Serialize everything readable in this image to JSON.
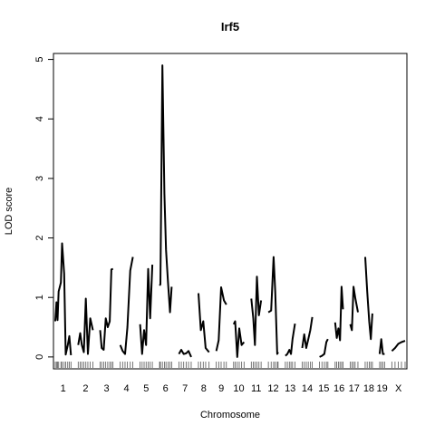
{
  "chart_data": {
    "type": "line",
    "title": "Irf5",
    "xlabel": "Chromosome",
    "ylabel": "LOD score",
    "ylim": [
      -0.2,
      5.1
    ],
    "yticks": [
      0,
      1,
      2,
      3,
      4,
      5
    ],
    "grid": false,
    "legend": "none",
    "line_color": "#000000",
    "chromosomes": [
      {
        "name": "1",
        "length": 195,
        "positions": [
          0,
          15,
          28,
          42,
          70,
          85,
          110,
          130,
          155,
          175,
          195
        ],
        "lod": [
          0.6,
          0.92,
          0.62,
          1.1,
          1.25,
          1.91,
          1.4,
          0.04,
          0.2,
          0.35,
          0.03
        ]
      },
      {
        "name": "2",
        "length": 182,
        "positions": [
          0,
          25,
          45,
          70,
          95,
          120,
          150,
          182
        ],
        "lod": [
          0.2,
          0.4,
          0.2,
          0.08,
          0.98,
          0.05,
          0.65,
          0.45
        ]
      },
      {
        "name": "3",
        "length": 160,
        "positions": [
          0,
          20,
          45,
          70,
          95,
          120,
          140,
          160
        ],
        "lod": [
          0.45,
          0.15,
          0.12,
          0.65,
          0.5,
          0.6,
          1.47,
          1.48
        ]
      },
      {
        "name": "4",
        "length": 157,
        "positions": [
          0,
          30,
          60,
          90,
          125,
          157
        ],
        "lod": [
          0.2,
          0.1,
          0.05,
          0.5,
          1.45,
          1.68
        ]
      },
      {
        "name": "5",
        "length": 152,
        "positions": [
          0,
          25,
          50,
          75,
          100,
          125,
          152
        ],
        "lod": [
          0.55,
          0.05,
          0.45,
          0.2,
          1.48,
          0.65,
          1.55
        ]
      },
      {
        "name": "6",
        "length": 150,
        "positions": [
          0,
          10,
          35,
          60,
          80,
          105,
          130,
          150
        ],
        "lod": [
          1.2,
          1.22,
          4.9,
          2.75,
          1.8,
          1.25,
          0.75,
          1.18
        ]
      },
      {
        "name": "7",
        "length": 153,
        "positions": [
          0,
          30,
          60,
          90,
          120,
          153
        ],
        "lod": [
          0.05,
          0.12,
          0.05,
          0.06,
          0.1,
          0.0
        ]
      },
      {
        "name": "8",
        "length": 132,
        "positions": [
          0,
          30,
          60,
          90,
          132
        ],
        "lod": [
          1.07,
          0.45,
          0.6,
          0.15,
          0.08
        ]
      },
      {
        "name": "9",
        "length": 125,
        "positions": [
          0,
          30,
          60,
          95,
          125
        ],
        "lod": [
          0.1,
          0.28,
          1.17,
          0.95,
          0.88
        ]
      },
      {
        "name": "10",
        "length": 130,
        "positions": [
          0,
          20,
          45,
          70,
          100,
          130
        ],
        "lod": [
          0.55,
          0.6,
          0.0,
          0.48,
          0.2,
          0.25
        ]
      },
      {
        "name": "11",
        "length": 122,
        "positions": [
          0,
          25,
          45,
          70,
          95,
          122
        ],
        "lod": [
          0.98,
          0.65,
          0.2,
          1.35,
          0.7,
          0.95
        ]
      },
      {
        "name": "12",
        "length": 121,
        "positions": [
          0,
          35,
          65,
          85,
          110,
          121
        ],
        "lod": [
          0.75,
          0.78,
          1.68,
          1.1,
          0.05,
          0.08
        ]
      },
      {
        "name": "13",
        "length": 120,
        "positions": [
          0,
          25,
          50,
          70,
          90,
          120
        ],
        "lod": [
          0.02,
          0.05,
          0.12,
          0.05,
          0.3,
          0.56
        ]
      },
      {
        "name": "14",
        "length": 125,
        "positions": [
          0,
          25,
          50,
          75,
          100,
          125
        ],
        "lod": [
          0.15,
          0.38,
          0.15,
          0.3,
          0.45,
          0.67
        ]
      },
      {
        "name": "15",
        "length": 104,
        "positions": [
          0,
          30,
          60,
          85,
          104
        ],
        "lod": [
          0.0,
          0.02,
          0.05,
          0.25,
          0.3
        ]
      },
      {
        "name": "16",
        "length": 98,
        "positions": [
          0,
          20,
          40,
          60,
          80,
          98
        ],
        "lod": [
          0.58,
          0.32,
          0.48,
          0.28,
          1.18,
          0.8
        ]
      },
      {
        "name": "17",
        "length": 95,
        "positions": [
          0,
          20,
          40,
          60,
          95
        ],
        "lod": [
          0.55,
          0.45,
          1.18,
          1.0,
          0.75
        ]
      },
      {
        "name": "18",
        "length": 90,
        "positions": [
          0,
          25,
          50,
          70,
          90
        ],
        "lod": [
          1.68,
          1.1,
          0.6,
          0.3,
          0.73
        ]
      },
      {
        "name": "19",
        "length": 61,
        "positions": [
          0,
          20,
          40,
          61
        ],
        "lod": [
          0.05,
          0.3,
          0.05,
          0.05
        ]
      },
      {
        "name": "X",
        "length": 165,
        "positions": [
          0,
          40,
          80,
          120,
          165
        ],
        "lod": [
          0.1,
          0.15,
          0.22,
          0.25,
          0.27
        ]
      }
    ]
  }
}
